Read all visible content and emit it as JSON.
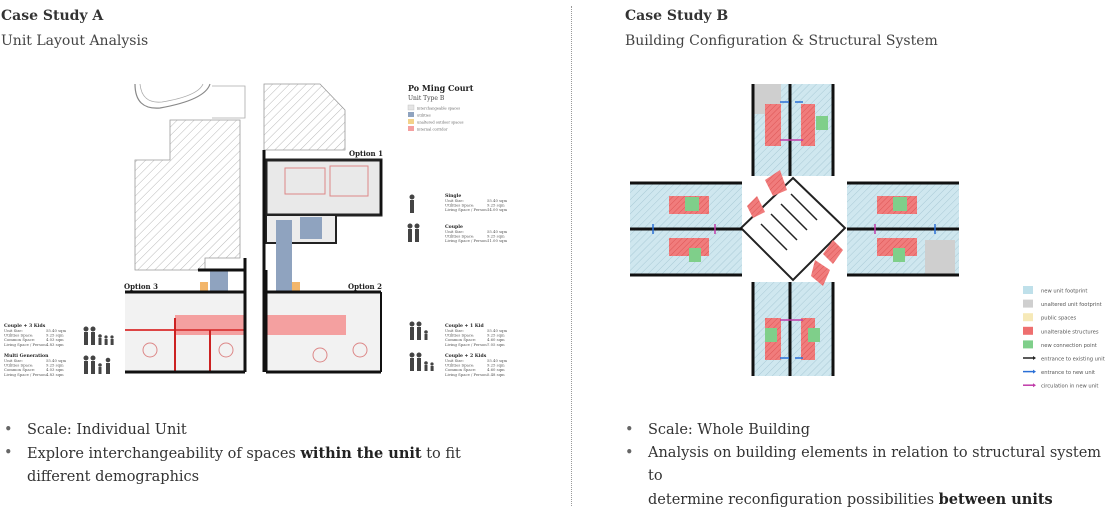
{
  "case_a": {
    "title": "Case Study A",
    "subtitle": "Unit Layout Analysis",
    "plan": {
      "heading": "Po Ming Court",
      "subheading": "Unit Type B",
      "legend": [
        "interchangeable spaces",
        "utilities",
        "unaltered outdoor spaces",
        "internal corridor"
      ],
      "options": [
        "Option 1",
        "Option 2",
        "Option 3"
      ],
      "stats_left": [
        {
          "label": "Couple + 3 Kids",
          "rows": [
            "Unit Size:",
            "Utilities Space:",
            "Common Space:",
            "Living Space / Person:"
          ],
          "values": [
            "55.40 sqm",
            "9.25 sqm",
            "4.03 sqm",
            "4.83 sqm"
          ]
        },
        {
          "label": "Multi Generation",
          "rows": [
            "Unit Size:",
            "Utilities Space:",
            "Common Space:",
            "Living Space / Person:"
          ],
          "values": [
            "55.40 sqm",
            "9.25 sqm",
            "4.03 sqm",
            "4.83 sqm"
          ]
        }
      ],
      "stats_right": [
        {
          "label": "Single",
          "rows": [
            "Unit Size:",
            "Utilities Space:",
            "Living Space / Person:"
          ],
          "values": [
            "55.40 sqm",
            "9.25 sqm",
            "14.00 sqm"
          ]
        },
        {
          "label": "Couple",
          "rows": [
            "Unit Size:",
            "Utilities Space:",
            "Living Space / Person:"
          ],
          "values": [
            "55.40 sqm",
            "9.25 sqm",
            "11.00 sqm"
          ]
        },
        {
          "label": "Couple + 1 Kid",
          "rows": [
            "Unit Size:",
            "Utilities Space:",
            "Common Space:",
            "Living Space / Person:"
          ],
          "values": [
            "55.40 sqm",
            "9.25 sqm",
            "4.60 sqm",
            "7.05 sqm"
          ]
        },
        {
          "label": "Couple + 2 Kids",
          "rows": [
            "Unit Size:",
            "Utilities Space:",
            "Common Space:",
            "Living Space / Person:"
          ],
          "values": [
            "55.40 sqm",
            "9.25 sqm",
            "4.60 sqm",
            "5.48 sqm"
          ]
        }
      ]
    },
    "bullets": [
      {
        "text": "Scale: Individual Unit"
      },
      {
        "pre": "Explore interchangeability of spaces ",
        "bold": "within the unit",
        "post": " to fit",
        "line2": "different demographics"
      }
    ]
  },
  "case_b": {
    "title": "Case Study B",
    "subtitle": "Building Configuration & Structural System",
    "legend": [
      {
        "label": "new unit footprint",
        "color": "#bfe0ea"
      },
      {
        "label": "unaltered unit footprint",
        "color": "#cfcfcf"
      },
      {
        "label": "public spaces",
        "color": "#f6e9b8"
      },
      {
        "label": "unalterable structures",
        "color": "#ee6f6f"
      },
      {
        "label": "new connection point",
        "color": "#7fcf8a"
      },
      {
        "label": "entrance to existing unit",
        "color": "#222222"
      },
      {
        "label": "entrance to new unit",
        "color": "#2a6fd6"
      },
      {
        "label": "circulation in new unit",
        "color": "#c03aa8"
      }
    ],
    "bullets": [
      {
        "text": "Scale: Whole Building"
      },
      {
        "pre": "Analysis on building elements in relation to structural system to",
        "line2pre": "determine reconfiguration possibilities ",
        "bold": "between units"
      }
    ]
  }
}
